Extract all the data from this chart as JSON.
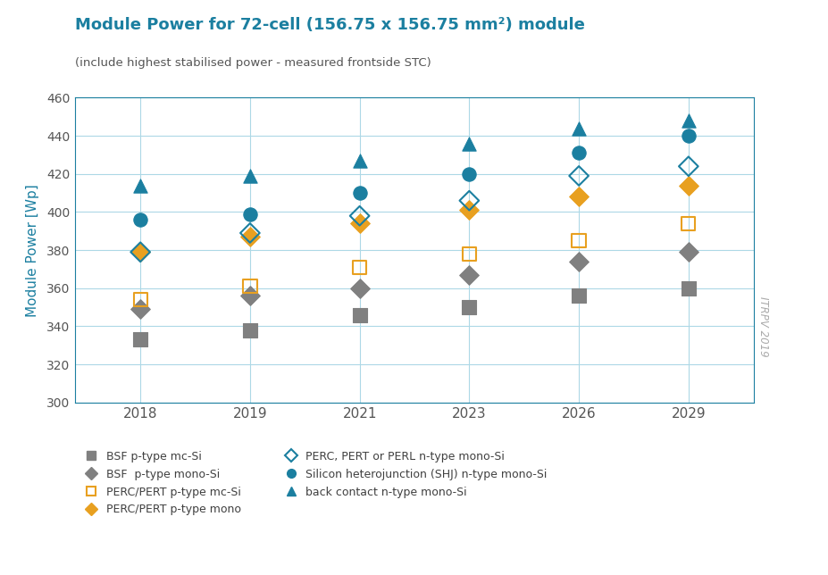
{
  "title": "Module Power for 72-cell (156.75 x 156.75 mm²) module",
  "subtitle": "(include highest stabilised power - measured frontside STC)",
  "ylabel": "Module Power [Wp]",
  "ylim": [
    300,
    460
  ],
  "yticks": [
    300,
    320,
    340,
    360,
    380,
    400,
    420,
    440,
    460
  ],
  "x_positions": [
    0,
    1,
    2,
    3,
    4,
    5
  ],
  "x_labels": [
    "2018",
    "2019",
    "2021",
    "2023",
    "2026",
    "2029"
  ],
  "watermark": "ITRPV 2019",
  "series": {
    "BSF_mc": {
      "label": "BSF p-type mc-Si",
      "color": "#808080",
      "marker": "s",
      "filled": true,
      "data": [
        [
          0,
          333
        ],
        [
          1,
          338
        ],
        [
          2,
          346
        ],
        [
          3,
          350
        ],
        [
          4,
          356
        ],
        [
          5,
          360
        ]
      ]
    },
    "BSF_mono": {
      "label": "BSF  p-type mono-Si",
      "color": "#808080",
      "marker": "D",
      "filled": true,
      "data": [
        [
          0,
          349
        ],
        [
          1,
          356
        ],
        [
          2,
          360
        ],
        [
          3,
          367
        ],
        [
          4,
          374
        ],
        [
          5,
          379
        ]
      ]
    },
    "PERC_mc": {
      "label": "PERC/PERT p-type mc-Si",
      "color": "#E8A020",
      "marker": "s",
      "filled": false,
      "data": [
        [
          0,
          354
        ],
        [
          1,
          361
        ],
        [
          2,
          371
        ],
        [
          3,
          378
        ],
        [
          4,
          385
        ],
        [
          5,
          394
        ]
      ]
    },
    "PERC_mono": {
      "label": "PERC/PERT p-type mono",
      "color": "#E8A020",
      "marker": "D",
      "filled": true,
      "data": [
        [
          0,
          379
        ],
        [
          1,
          387
        ],
        [
          2,
          394
        ],
        [
          3,
          401
        ],
        [
          4,
          408
        ],
        [
          5,
          414
        ]
      ]
    },
    "PERC_n": {
      "label": "PERC, PERT or PERL n-type mono-Si",
      "color": "#1B7FA0",
      "marker": "D",
      "filled": false,
      "data": [
        [
          0,
          379
        ],
        [
          1,
          389
        ],
        [
          2,
          398
        ],
        [
          3,
          406
        ],
        [
          4,
          419
        ],
        [
          5,
          424
        ]
      ]
    },
    "SHJ": {
      "label": "Silicon heterojunction (SHJ) n-type mono-Si",
      "color": "#1B7FA0",
      "marker": "o",
      "filled": true,
      "data": [
        [
          0,
          396
        ],
        [
          1,
          399
        ],
        [
          2,
          410
        ],
        [
          3,
          420
        ],
        [
          4,
          431
        ],
        [
          5,
          440
        ]
      ]
    },
    "back_contact": {
      "label": "back contact n-type mono-Si",
      "color": "#1B7FA0",
      "marker": "^",
      "filled": true,
      "data": [
        [
          0,
          414
        ],
        [
          1,
          419
        ],
        [
          2,
          427
        ],
        [
          3,
          436
        ],
        [
          4,
          444
        ],
        [
          5,
          448
        ]
      ]
    }
  },
  "legend_col1": [
    "BSF_mc",
    "PERC_mc",
    "PERC_n",
    "back_contact"
  ],
  "legend_col2": [
    "BSF_mono",
    "PERC_mono",
    "SHJ"
  ],
  "title_color": "#1B7FA0",
  "subtitle_color": "#555555",
  "axis_color": "#1B7FA0",
  "grid_color": "#ADD8E6",
  "tick_color": "#555555",
  "marker_size": 9,
  "background_color": "#FFFFFF"
}
